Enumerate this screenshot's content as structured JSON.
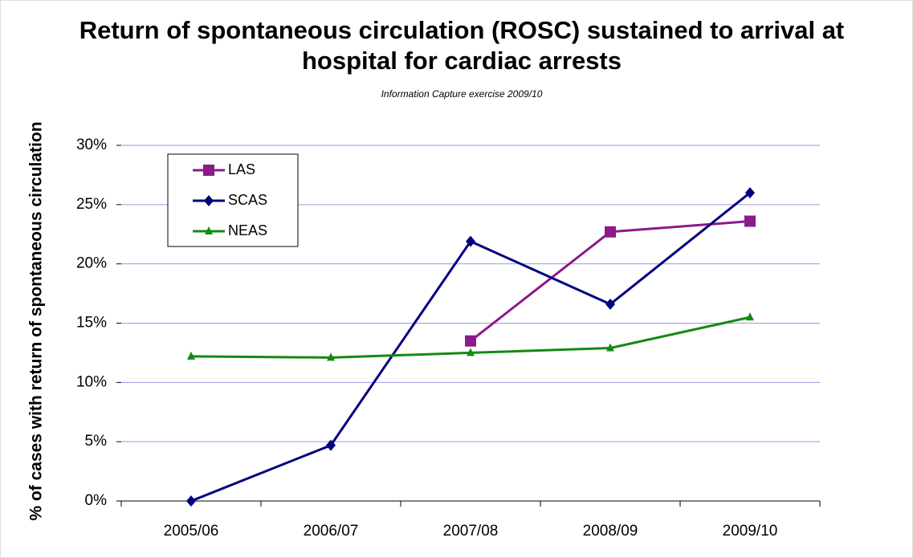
{
  "chart_data": {
    "type": "line",
    "title": [
      "Return of spontaneous circulation (ROSC) sustained to arrival at",
      "hospital for cardiac arrests"
    ],
    "subtitle": "Information Capture exercise 2009/10",
    "ylabel": "% of cases with return of spontaneous circulation",
    "categories": [
      "2005/06",
      "2006/07",
      "2007/08",
      "2008/09",
      "2009/10"
    ],
    "series": [
      {
        "name": "LAS",
        "color": "#8b1a8b",
        "marker": "square",
        "values": [
          null,
          null,
          13.5,
          22.7,
          23.6
        ]
      },
      {
        "name": "SCAS",
        "color": "#000080",
        "marker": "diamond",
        "values": [
          0,
          4.7,
          21.9,
          16.6,
          26.0
        ]
      },
      {
        "name": "NEAS",
        "color": "#138a13",
        "marker": "triangle",
        "values": [
          12.2,
          12.1,
          12.5,
          12.9,
          15.5
        ]
      }
    ],
    "ylim": [
      0,
      30
    ],
    "yticks": [
      {
        "value": 0,
        "label": "0%"
      },
      {
        "value": 5,
        "label": "5%"
      },
      {
        "value": 10,
        "label": "10%"
      },
      {
        "value": 15,
        "label": "15%"
      },
      {
        "value": 20,
        "label": "20%"
      },
      {
        "value": 25,
        "label": "25%"
      },
      {
        "value": 30,
        "label": "30%"
      }
    ],
    "grid": true,
    "legend": "upper left"
  }
}
